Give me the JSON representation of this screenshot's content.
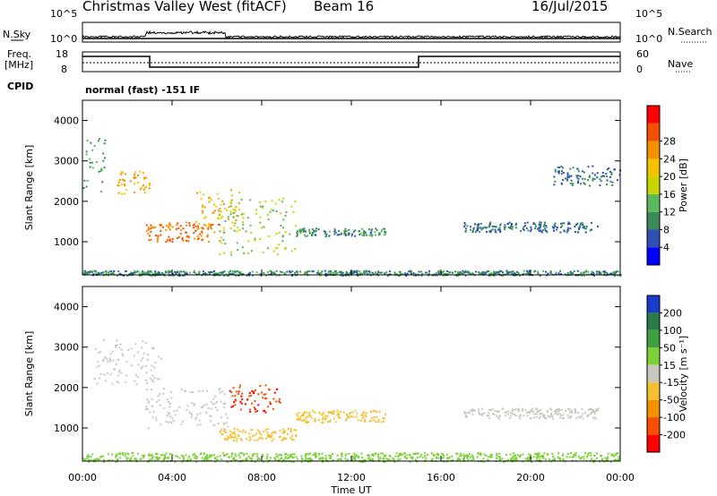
{
  "header": {
    "station": "Christmas Valley West (fitACF)",
    "beam": "Beam 16",
    "date": "16/Jul/2015"
  },
  "noise_panel": {
    "label_left": "N.Sky",
    "label_right": "N.Search",
    "tick_top_left": "10^5",
    "tick_bottom_left": "10^0",
    "tick_top_right": "10^5",
    "tick_bottom_right": "10^0"
  },
  "freq_panel": {
    "label_left_1": "Freq.",
    "label_left_2": "[MHz]",
    "label_right": "Nave",
    "tick_left_top": "18",
    "tick_left_bottom": "8",
    "tick_right_top": "60",
    "tick_right_bottom": "0"
  },
  "cpid": {
    "label": "CPID",
    "value": "normal (fast) -151 IF"
  },
  "chart_data": [
    {
      "type": "heatmap",
      "name": "power",
      "ylabel": "Slant Range [km]",
      "xlabel": "Time UT",
      "xlim": [
        "00:00",
        "24:00"
      ],
      "ylim": [
        180,
        4500
      ],
      "x_ticks": [
        "00:00",
        "04:00",
        "08:00",
        "12:00",
        "16:00",
        "20:00",
        "00:00"
      ],
      "y_ticks": [
        1000,
        2000,
        3000,
        4000
      ],
      "colorbar": {
        "label": "Power [dB]",
        "ticks": [
          "4",
          "8",
          "12",
          "16",
          "20",
          "24",
          "28"
        ],
        "colors": [
          "#0000ff",
          "#2f4fb4",
          "#3a8a5a",
          "#5cb85c",
          "#c8d400",
          "#f5c200",
          "#f59000",
          "#f55000",
          "#ff0000"
        ]
      },
      "features": [
        {
          "time_h": [
            0.0,
            24.0
          ],
          "range_km": [
            180,
            300
          ],
          "value": 8,
          "note": "ground scatter band"
        },
        {
          "time_h": [
            0.0,
            1.0
          ],
          "range_km": [
            2100,
            3600
          ],
          "value": 10
        },
        {
          "time_h": [
            1.5,
            3.0
          ],
          "range_km": [
            2200,
            2800
          ],
          "value": 22
        },
        {
          "time_h": [
            2.8,
            6.2
          ],
          "range_km": [
            1000,
            1500
          ],
          "value": 26
        },
        {
          "time_h": [
            5.0,
            7.0
          ],
          "range_km": [
            1300,
            2300
          ],
          "value": 22
        },
        {
          "time_h": [
            6.0,
            9.5
          ],
          "range_km": [
            700,
            2100
          ],
          "value": 14
        },
        {
          "time_h": [
            9.5,
            13.5
          ],
          "range_km": [
            1150,
            1350
          ],
          "value": 8
        },
        {
          "time_h": [
            17.0,
            23.0
          ],
          "range_km": [
            1250,
            1500
          ],
          "value": 6
        },
        {
          "time_h": [
            21.0,
            24.0
          ],
          "range_km": [
            2400,
            2900
          ],
          "value": 6
        }
      ]
    },
    {
      "type": "heatmap",
      "name": "velocity",
      "ylabel": "Slant Range [km]",
      "xlabel": "Time UT",
      "xlim": [
        "00:00",
        "24:00"
      ],
      "ylim": [
        180,
        4500
      ],
      "x_ticks": [
        "00:00",
        "04:00",
        "08:00",
        "12:00",
        "16:00",
        "20:00",
        "00:00"
      ],
      "y_ticks": [
        1000,
        2000,
        3000,
        4000
      ],
      "colorbar": {
        "label": "Velocity [m s⁻¹]",
        "ticks": [
          "200",
          "100",
          "50",
          "15",
          "-15",
          "-50",
          "-100",
          "-200"
        ],
        "colors": [
          "#1a3ccc",
          "#2a7a4a",
          "#3fa040",
          "#7cd038",
          "#c8c8c0",
          "#f5c030",
          "#f59000",
          "#f55000",
          "#ff0000"
        ]
      },
      "features": [
        {
          "time_h": [
            0.0,
            24.0
          ],
          "range_km": [
            180,
            400
          ],
          "value": 30,
          "note": "green ground scatter band"
        },
        {
          "time_h": [
            0.5,
            3.5
          ],
          "range_km": [
            2100,
            3200
          ],
          "value": 0
        },
        {
          "time_h": [
            2.8,
            6.5
          ],
          "range_km": [
            1000,
            2000
          ],
          "value": 0
        },
        {
          "time_h": [
            6.5,
            8.8
          ],
          "range_km": [
            1400,
            2100
          ],
          "value": -200
        },
        {
          "time_h": [
            6.0,
            9.5
          ],
          "range_km": [
            700,
            1000
          ],
          "value": -40
        },
        {
          "time_h": [
            9.5,
            13.5
          ],
          "range_km": [
            1150,
            1450
          ],
          "value": -40
        },
        {
          "time_h": [
            17.0,
            23.0
          ],
          "range_km": [
            1250,
            1500
          ],
          "value": 0
        }
      ]
    }
  ]
}
